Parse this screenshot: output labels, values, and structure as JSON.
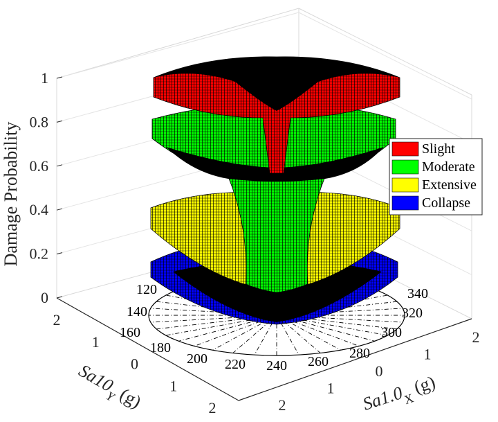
{
  "chart_data": {
    "type": "surface3d",
    "zlabel": "Damage Probability",
    "xlabel": {
      "base": "Sa1.0",
      "sub": "X",
      "unit": " (g)"
    },
    "ylabel": {
      "base": "Sa10",
      "sub": "Y",
      "unit": " (g)"
    },
    "zlim": [
      0,
      1
    ],
    "zticks": [
      "0",
      "0.2",
      "0.4",
      "0.6",
      "0.8",
      "1"
    ],
    "xticks": [
      "2",
      "1",
      "0",
      "1",
      "2"
    ],
    "yticks": [
      "2",
      "1",
      "0",
      "1",
      "2"
    ],
    "angle_labels": [
      "120",
      "140",
      "160",
      "180",
      "200",
      "220",
      "240",
      "260",
      "280",
      "300",
      "320",
      "340"
    ],
    "series": [
      {
        "name": "Slight",
        "color": "#ff0000"
      },
      {
        "name": "Moderate",
        "color": "#00ff00"
      },
      {
        "name": "Extensive",
        "color": "#ffff00"
      },
      {
        "name": "Collapse",
        "color": "#0000ff"
      }
    ],
    "legend_position": "right",
    "grid": true
  }
}
